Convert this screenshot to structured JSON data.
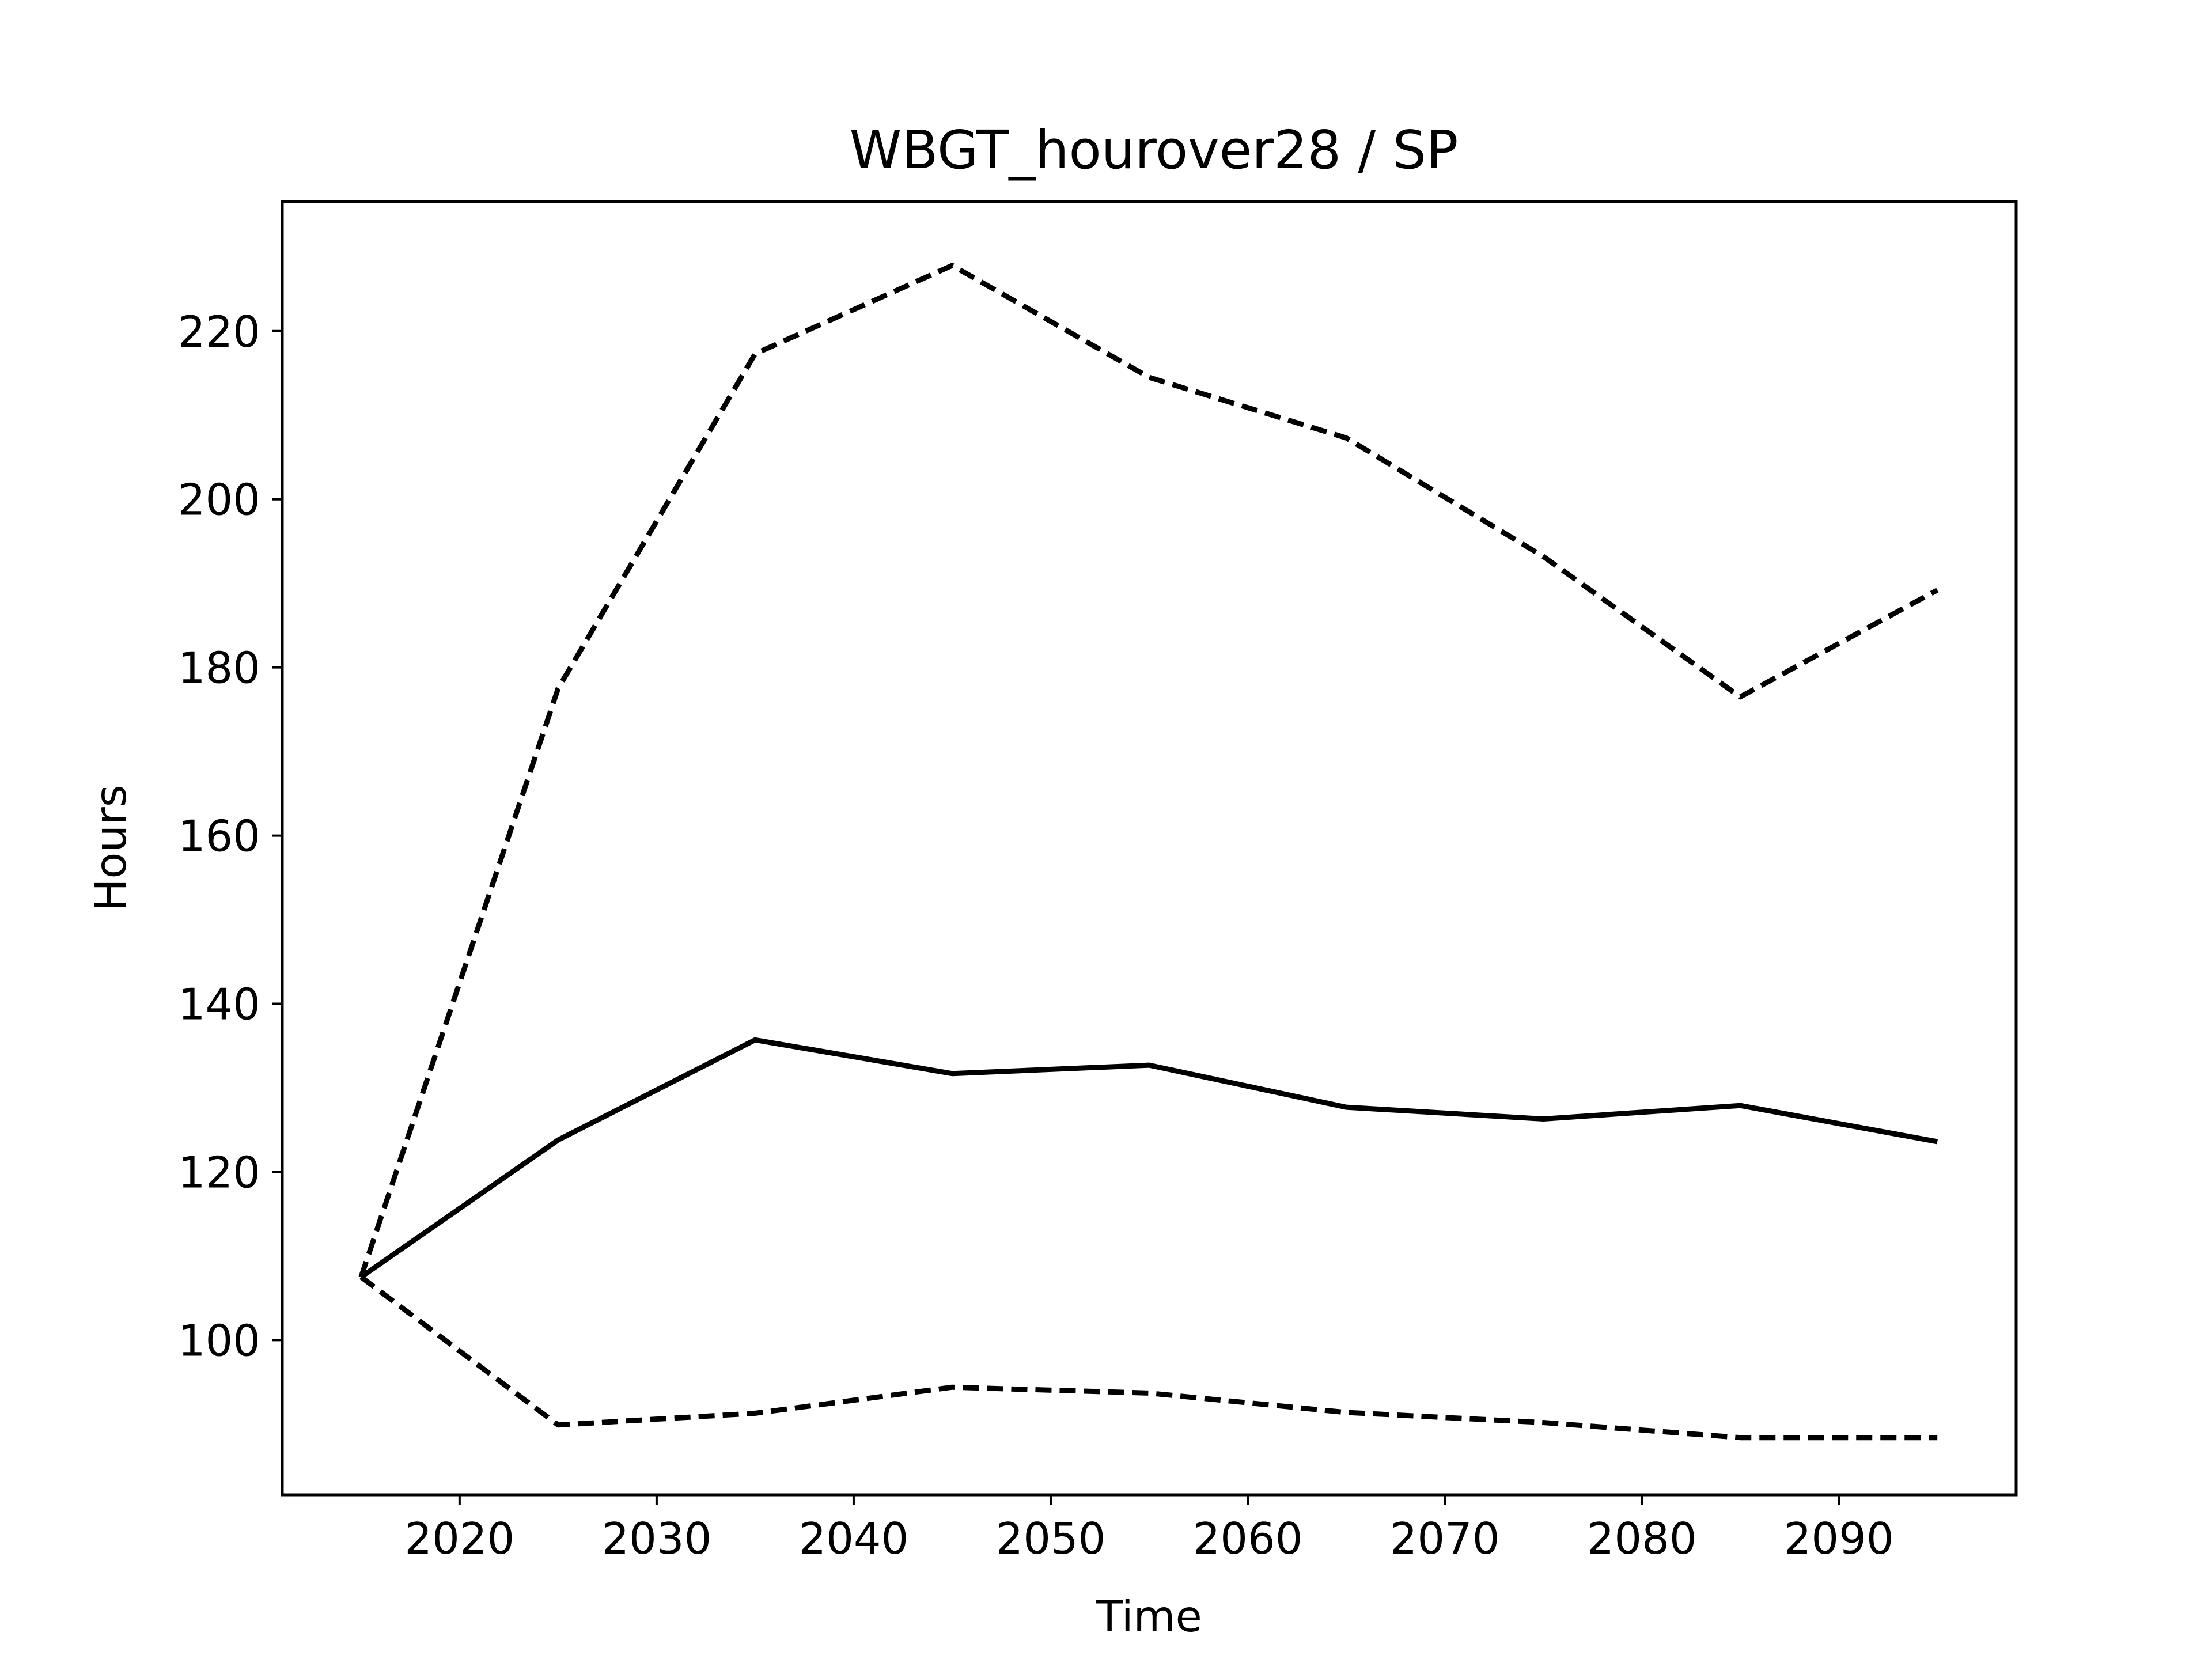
{
  "chart_data": {
    "type": "line",
    "title": "WBGT_hourover28 / SP",
    "xlabel": "Time",
    "ylabel": "Hours",
    "x": [
      2015,
      2025,
      2035,
      2045,
      2055,
      2065,
      2075,
      2085,
      2095
    ],
    "series": [
      {
        "style": "solid",
        "values": [
          107.5,
          123.8,
          135.7,
          131.7,
          132.7,
          127.7,
          126.3,
          127.9,
          123.6
        ]
      },
      {
        "style": "dashed",
        "values": [
          107.5,
          177.5,
          217.3,
          227.8,
          214.5,
          207.3,
          193.2,
          176.5,
          189.2
        ]
      },
      {
        "style": "dashed",
        "values": [
          107.5,
          89.9,
          91.3,
          94.4,
          93.7,
          91.4,
          90.2,
          88.4,
          88.4
        ]
      }
    ],
    "xlim": [
      2011.0,
      2099.0
    ],
    "ylim": [
      81.6,
      235.4
    ],
    "xticks": [
      2020,
      2030,
      2040,
      2050,
      2060,
      2070,
      2080,
      2090
    ],
    "yticks": [
      100,
      120,
      140,
      160,
      180,
      200,
      220
    ],
    "grid": false,
    "legend": "none",
    "line_color": "#000000"
  }
}
